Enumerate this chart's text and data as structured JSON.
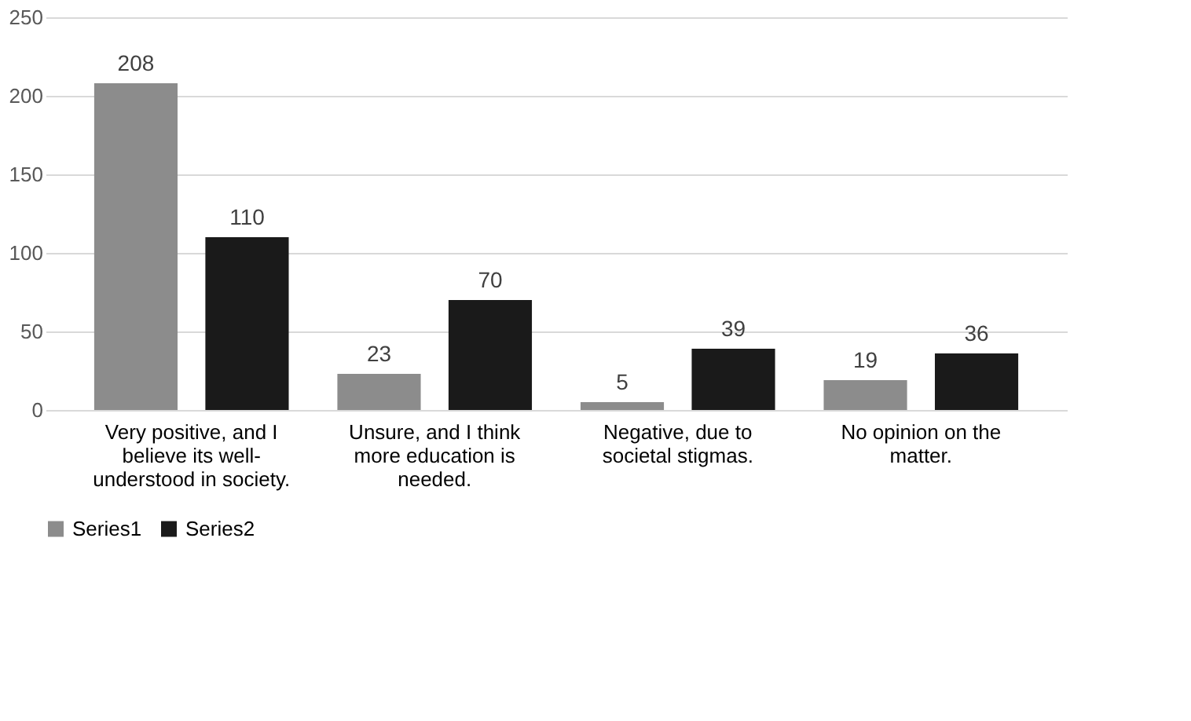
{
  "chart_data": {
    "type": "bar",
    "categories": [
      "Very positive, and I believe its well-understood in society.",
      "Unsure, and I think more education is needed.",
      "Negative, due to societal stigmas.",
      "No opinion on the matter."
    ],
    "series": [
      {
        "name": "Series1",
        "color": "#8c8c8c",
        "values": [
          208,
          23,
          5,
          19
        ]
      },
      {
        "name": "Series2",
        "color": "#1a1a1a",
        "values": [
          110,
          70,
          39,
          36
        ]
      }
    ],
    "ylim": [
      0,
      250
    ],
    "yticks": [
      0,
      50,
      100,
      150,
      200,
      250
    ],
    "grid": "y",
    "legend": "bottom",
    "data_labels": true
  }
}
